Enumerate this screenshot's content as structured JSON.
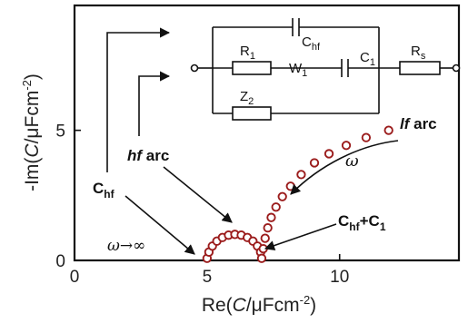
{
  "chart_data": {
    "type": "scatter",
    "title": "",
    "xlabel_parts": [
      "Re(",
      "C",
      "/μFcm",
      "-2",
      ")"
    ],
    "ylabel_parts": [
      "-Im(",
      "C",
      "/μFcm",
      "-2",
      ")"
    ],
    "xlim": [
      0,
      14.5
    ],
    "ylim": [
      0,
      9.8
    ],
    "xticks": [
      0,
      5,
      10
    ],
    "yticks": [
      0,
      5
    ],
    "xtick_labels": [
      "0",
      "5",
      "10"
    ],
    "ytick_labels": [
      "0",
      "5"
    ],
    "grid": false,
    "legend": "none",
    "marker_color": "#9b1c1c",
    "series": [
      {
        "x": [
          5.0,
          5.07,
          5.2,
          5.37,
          5.58,
          5.81,
          6.05,
          6.29,
          6.52,
          6.73,
          6.9,
          7.02,
          7.06,
          7.12,
          7.19,
          7.29,
          7.42,
          7.6,
          7.84,
          8.15,
          8.55,
          9.05,
          9.6,
          10.25,
          11.0,
          11.85
        ],
        "y": [
          0.08,
          0.32,
          0.55,
          0.74,
          0.88,
          0.97,
          1.0,
          0.97,
          0.88,
          0.74,
          0.55,
          0.32,
          0.08,
          0.45,
          0.85,
          1.25,
          1.65,
          2.05,
          2.45,
          2.85,
          3.3,
          3.75,
          4.1,
          4.42,
          4.72,
          5.0
        ]
      }
    ],
    "annotations": {
      "hf_arc": {
        "italic": "hf",
        "normal": " arc"
      },
      "lf_arc": {
        "italic": "lf",
        "normal": " arc"
      },
      "c_hf": {
        "main": "C",
        "sub": "hf"
      },
      "c_hf_c1": {
        "main": "C",
        "sub1": "hf",
        "mid": "+C",
        "sub2": "1"
      },
      "omega": "ω",
      "omega_inf": {
        "w": "ω",
        "rest": "→∞"
      }
    },
    "circuit": {
      "c_hf": {
        "main": "C",
        "sub": "hf"
      },
      "r1": {
        "main": "R",
        "sub": "1"
      },
      "w1": {
        "main": "W",
        "sub": "1"
      },
      "c1": {
        "main": "C",
        "sub": "1"
      },
      "z2": {
        "main": "Z",
        "sub": "2"
      },
      "rs": {
        "main": "R",
        "sub": "s"
      }
    }
  }
}
